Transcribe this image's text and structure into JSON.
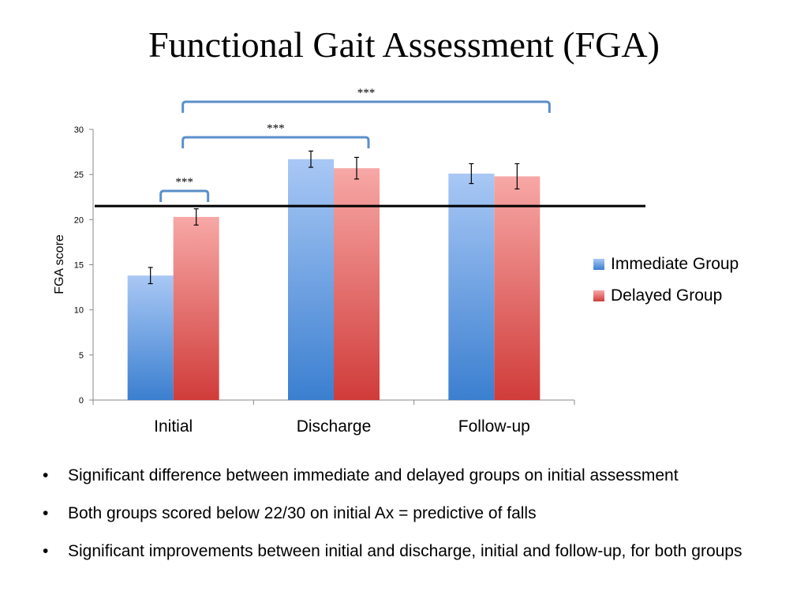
{
  "slide": {
    "title": "Functional Gait Assessment (FGA)",
    "bullets": [
      "Significant difference between immediate and delayed groups on initial assessment",
      "Both groups scored below 22/30 on initial Ax = predictive of falls",
      "Significant improvements between initial and discharge, initial and follow-up, for both groups"
    ],
    "bullet_symbol": "•"
  },
  "chart_data": {
    "type": "bar",
    "title": "",
    "xlabel": "",
    "ylabel": "FGA score",
    "ylim": [
      0,
      30
    ],
    "yticks": [
      0,
      5,
      10,
      15,
      20,
      25,
      30
    ],
    "categories": [
      "Initial",
      "Discharge",
      "Follow-up"
    ],
    "series": [
      {
        "name": "Immediate Group",
        "values": [
          13.8,
          26.7,
          25.1
        ],
        "errors": [
          0.9,
          0.9,
          1.1
        ],
        "color_top": "#a9c8f5",
        "color_bottom": "#3b7fd0"
      },
      {
        "name": "Delayed Group",
        "values": [
          20.3,
          25.7,
          24.8
        ],
        "errors": [
          0.9,
          1.2,
          1.4
        ],
        "color_top": "#f7a8a6",
        "color_bottom": "#d03c3a"
      }
    ],
    "reference_line": {
      "value": 21.5,
      "color": "#000000"
    },
    "significance_brackets": [
      {
        "label": "***",
        "from": "Initial",
        "to": "Follow-up"
      },
      {
        "label": "***",
        "from": "Initial",
        "to": "Discharge"
      },
      {
        "label": "***",
        "from": "Initial Immediate Group",
        "to": "Initial Delayed Group"
      }
    ],
    "legend_position": "right",
    "bracket_color": "#5b8fc9"
  }
}
